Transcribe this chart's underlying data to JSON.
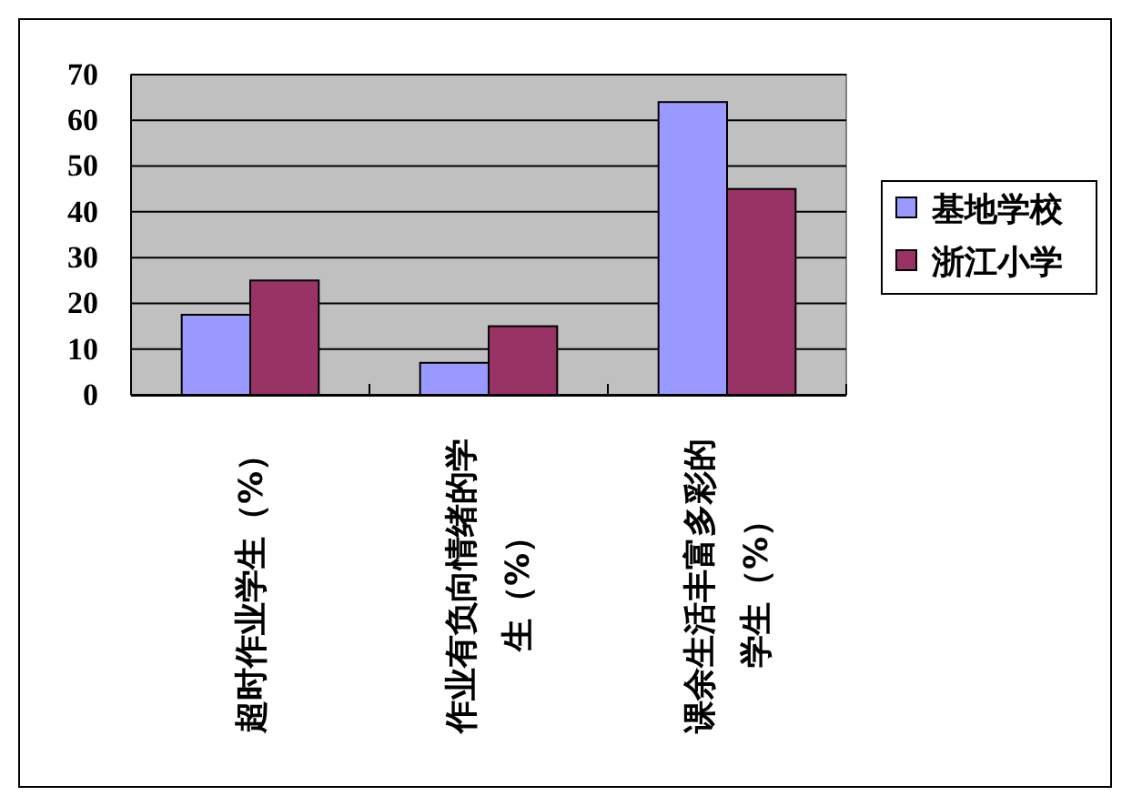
{
  "chart_data": {
    "type": "bar",
    "categories": [
      "超时作业学生（%）",
      "作业有负向情绪的学生（%）",
      "课余生活丰富多彩的学生（%）"
    ],
    "series": [
      {
        "name": "基地学校",
        "color": "#9999ff",
        "values": [
          17.5,
          7,
          64
        ]
      },
      {
        "name": "浙江小学",
        "color": "#993366",
        "values": [
          25,
          15,
          45
        ]
      }
    ],
    "ylim": [
      0,
      70
    ],
    "yticks": [
      0,
      10,
      20,
      30,
      40,
      50,
      60,
      70
    ],
    "grid": "y",
    "legend": "right"
  }
}
